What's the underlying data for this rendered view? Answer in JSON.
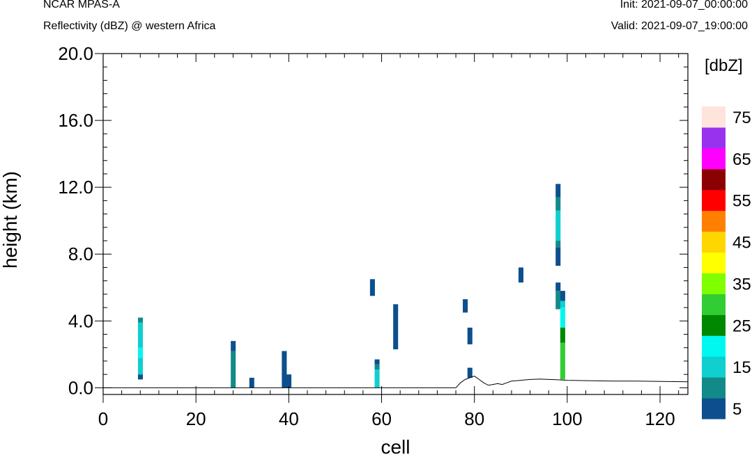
{
  "header": {
    "model": "NCAR MPAS-A",
    "field": "Reflectivity (dBZ) @ western Africa",
    "init": "Init: 2021-09-07_00:00:00",
    "valid": "Valid: 2021-09-07_19:00:00"
  },
  "chart_data": {
    "type": "heatmap",
    "xlabel": "cell",
    "ylabel": "height (km)",
    "xlim": [
      0,
      126
    ],
    "ylim": [
      -0.4,
      20.0
    ],
    "xticks": [
      0,
      20,
      40,
      60,
      80,
      100,
      120
    ],
    "xtick_labels": [
      "0",
      "20",
      "40",
      "60",
      "80",
      "100",
      "120"
    ],
    "yticks": [
      0.0,
      4.0,
      8.0,
      12.0,
      16.0,
      20.0
    ],
    "ytick_labels": [
      "0.0",
      "4.0",
      "8.0",
      "12.0",
      "16.0",
      "20.0"
    ],
    "colorbar": {
      "unit_label": "[dbZ]",
      "levels": [
        5,
        10,
        15,
        20,
        25,
        30,
        35,
        40,
        45,
        50,
        55,
        60,
        65,
        70,
        75
      ],
      "colors": [
        "#0d4f8e",
        "#138a8a",
        "#0fcfcf",
        "#00f8f0",
        "#008800",
        "#32cd32",
        "#7fff00",
        "#ffff00",
        "#ffd700",
        "#ff8000",
        "#ff0000",
        "#8b0000",
        "#ff00ff",
        "#9932ee",
        "#ffe4dc"
      ],
      "tick_labels": [
        "5",
        "15",
        "25",
        "35",
        "45",
        "55",
        "65",
        "75"
      ]
    },
    "cells": [
      {
        "x": 8,
        "y0": 0.5,
        "y1": 0.8,
        "dbz": 5
      },
      {
        "x": 8,
        "y0": 0.8,
        "y1": 1.2,
        "dbz": 15
      },
      {
        "x": 8,
        "y0": 1.2,
        "y1": 1.8,
        "dbz": 15
      },
      {
        "x": 8,
        "y0": 1.8,
        "y1": 2.4,
        "dbz": 20
      },
      {
        "x": 8,
        "y0": 2.4,
        "y1": 3.9,
        "dbz": 15
      },
      {
        "x": 8,
        "y0": 3.9,
        "y1": 4.2,
        "dbz": 10
      },
      {
        "x": 28,
        "y0": 0.0,
        "y1": 2.2,
        "dbz": 10
      },
      {
        "x": 28,
        "y0": 2.2,
        "y1": 2.8,
        "dbz": 5
      },
      {
        "x": 32,
        "y0": 0.0,
        "y1": 0.6,
        "dbz": 5
      },
      {
        "x": 39,
        "y0": 0.0,
        "y1": 2.2,
        "dbz": 5
      },
      {
        "x": 40,
        "y0": 0.0,
        "y1": 0.8,
        "dbz": 5
      },
      {
        "x": 58,
        "y0": 5.5,
        "y1": 6.5,
        "dbz": 5
      },
      {
        "x": 59,
        "y0": 0.0,
        "y1": 1.1,
        "dbz": 15
      },
      {
        "x": 59,
        "y0": 1.1,
        "y1": 1.4,
        "dbz": 10
      },
      {
        "x": 59,
        "y0": 1.4,
        "y1": 1.7,
        "dbz": 5
      },
      {
        "x": 63,
        "y0": 2.3,
        "y1": 5.0,
        "dbz": 5
      },
      {
        "x": 78,
        "y0": 4.5,
        "y1": 5.3,
        "dbz": 5
      },
      {
        "x": 79,
        "y0": 2.6,
        "y1": 3.6,
        "dbz": 5
      },
      {
        "x": 79,
        "y0": 0.6,
        "y1": 1.2,
        "dbz": 5
      },
      {
        "x": 90,
        "y0": 6.3,
        "y1": 7.2,
        "dbz": 5
      },
      {
        "x": 98,
        "y0": 11.4,
        "y1": 12.2,
        "dbz": 5
      },
      {
        "x": 98,
        "y0": 10.6,
        "y1": 11.4,
        "dbz": 10
      },
      {
        "x": 98,
        "y0": 8.8,
        "y1": 10.6,
        "dbz": 15
      },
      {
        "x": 98,
        "y0": 8.4,
        "y1": 8.8,
        "dbz": 10
      },
      {
        "x": 98,
        "y0": 7.3,
        "y1": 8.4,
        "dbz": 5
      },
      {
        "x": 98,
        "y0": 5.8,
        "y1": 6.3,
        "dbz": 5
      },
      {
        "x": 98,
        "y0": 4.7,
        "y1": 5.8,
        "dbz": 10
      },
      {
        "x": 99,
        "y0": 5.2,
        "y1": 5.8,
        "dbz": 5
      },
      {
        "x": 99,
        "y0": 4.8,
        "y1": 5.2,
        "dbz": 15
      },
      {
        "x": 99,
        "y0": 3.6,
        "y1": 4.8,
        "dbz": 20
      },
      {
        "x": 99,
        "y0": 2.7,
        "y1": 3.6,
        "dbz": 25
      },
      {
        "x": 99,
        "y0": 0.5,
        "y1": 2.7,
        "dbz": 30
      }
    ],
    "terrain": {
      "x": [
        0,
        76,
        77,
        78,
        79,
        80,
        81,
        82,
        83,
        84,
        85,
        86,
        87,
        88,
        89,
        90,
        92,
        94,
        96,
        98,
        100,
        105,
        110,
        115,
        120,
        126
      ],
      "y": [
        0.0,
        0.0,
        0.3,
        0.5,
        0.6,
        0.7,
        0.5,
        0.3,
        0.15,
        0.2,
        0.25,
        0.2,
        0.3,
        0.4,
        0.42,
        0.45,
        0.5,
        0.52,
        0.5,
        0.48,
        0.45,
        0.42,
        0.4,
        0.4,
        0.38,
        0.36
      ]
    }
  }
}
